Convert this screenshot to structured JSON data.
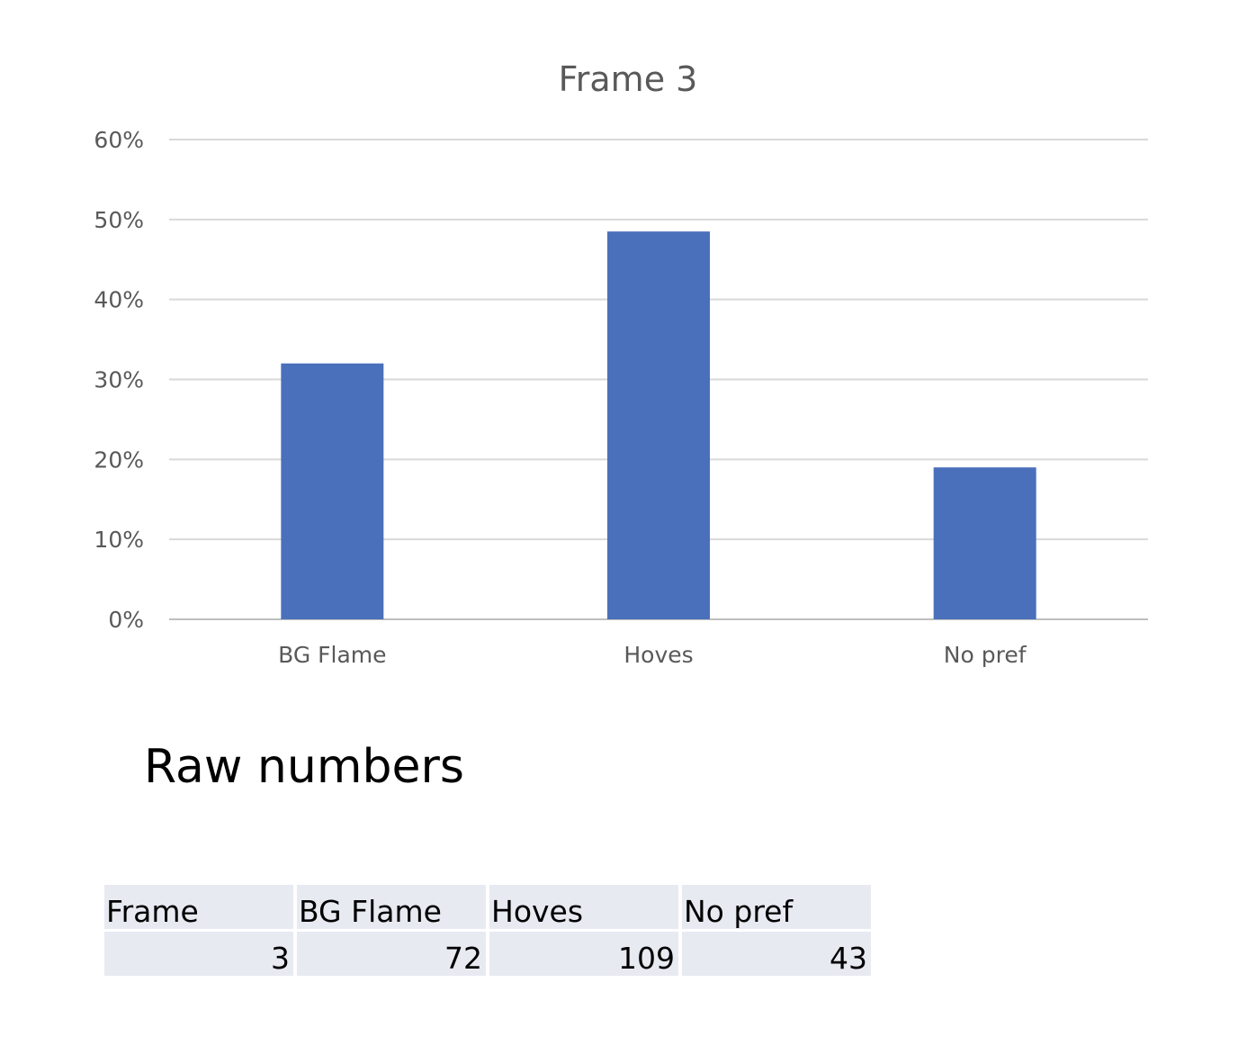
{
  "chart_data": {
    "type": "bar",
    "title": "Frame 3",
    "categories": [
      "BG Flame",
      "Hoves",
      "No pref"
    ],
    "values": [
      0.32,
      0.485,
      0.19
    ],
    "ylim": [
      0,
      0.6
    ],
    "yticks": [
      "0%",
      "10%",
      "20%",
      "30%",
      "40%",
      "50%",
      "60%"
    ],
    "xlabel": "",
    "ylabel": "",
    "grid": true,
    "legend": "none",
    "bar_color": "#4a70bc",
    "grid_color": "#d9d9d9"
  },
  "raw_section": {
    "heading": "Raw numbers",
    "table": {
      "headers": [
        "Frame",
        "BG Flame",
        "Hoves",
        "No pref"
      ],
      "values": [
        "3",
        "72",
        "109",
        "43"
      ]
    }
  }
}
